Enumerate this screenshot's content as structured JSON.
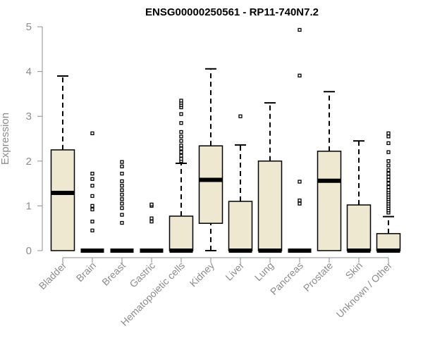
{
  "chart_data": {
    "type": "box",
    "title": "ENSG00000250561 - RP11-740N7.2",
    "ylabel": "Expression",
    "xlabel": "",
    "ylim": [
      0,
      5
    ],
    "yticks": [
      0,
      1,
      2,
      3,
      4,
      5
    ],
    "grid": false,
    "box_fill": "#efe8d0",
    "box_stroke": "#000000",
    "axis_color": "#8c8c8c",
    "categories": [
      "Bladder",
      "Brain",
      "Breast",
      "Gastric",
      "Hematopoietic cells",
      "Kidney",
      "Liver",
      "Lung",
      "Pancreas",
      "Prostate",
      "Skin",
      "Unknown / Other"
    ],
    "boxes": [
      {
        "min": 0,
        "q1": 0,
        "median": 1.29,
        "q3": 2.25,
        "max": 3.9,
        "outliers": []
      },
      {
        "min": 0,
        "q1": 0,
        "median": 0,
        "q3": 0,
        "max": 0,
        "outliers": [
          0.45,
          0.65,
          0.92,
          1.0,
          1.22,
          1.45,
          1.6,
          1.72,
          2.62
        ]
      },
      {
        "min": 0,
        "q1": 0,
        "median": 0,
        "q3": 0,
        "max": 0,
        "outliers": [
          0.62,
          0.8,
          0.95,
          1.05,
          1.15,
          1.25,
          1.35,
          1.45,
          1.55,
          1.72,
          1.88,
          1.98
        ]
      },
      {
        "min": 0,
        "q1": 0,
        "median": 0,
        "q3": 0,
        "max": 0,
        "outliers": [
          0.65,
          0.72,
          1.0,
          1.03
        ]
      },
      {
        "min": 0,
        "q1": 0,
        "median": 0,
        "q3": 0.77,
        "max": 1.95,
        "outliers": [
          2.0,
          2.05,
          2.12,
          2.2,
          2.28,
          2.35,
          2.45,
          2.55,
          2.65,
          2.85,
          3.05,
          3.2,
          3.25,
          3.3,
          3.35
        ]
      },
      {
        "min": 0,
        "q1": 0.61,
        "median": 1.58,
        "q3": 2.34,
        "max": 4.06,
        "outliers": []
      },
      {
        "min": 0,
        "q1": 0,
        "median": 0,
        "q3": 1.1,
        "max": 2.36,
        "outliers": [
          3.0
        ]
      },
      {
        "min": 0,
        "q1": 0,
        "median": 0,
        "q3": 2.0,
        "max": 3.3,
        "outliers": []
      },
      {
        "min": 0,
        "q1": 0,
        "median": 0,
        "q3": 0,
        "max": 0,
        "outliers": [
          1.05,
          1.12,
          1.54,
          3.91,
          4.93
        ]
      },
      {
        "min": 0,
        "q1": 0,
        "median": 1.56,
        "q3": 2.22,
        "max": 3.55,
        "outliers": []
      },
      {
        "min": 0,
        "q1": 0,
        "median": 0,
        "q3": 1.02,
        "max": 2.45,
        "outliers": []
      },
      {
        "min": 0,
        "q1": 0,
        "median": 0,
        "q3": 0.38,
        "max": 0.76,
        "outliers": [
          0.85,
          0.9,
          0.95,
          1.0,
          1.05,
          1.1,
          1.15,
          1.2,
          1.25,
          1.3,
          1.35,
          1.42,
          1.5,
          1.58,
          1.65,
          1.72,
          1.8,
          1.9,
          2.0,
          2.2,
          2.4,
          2.55,
          2.62
        ]
      }
    ]
  }
}
